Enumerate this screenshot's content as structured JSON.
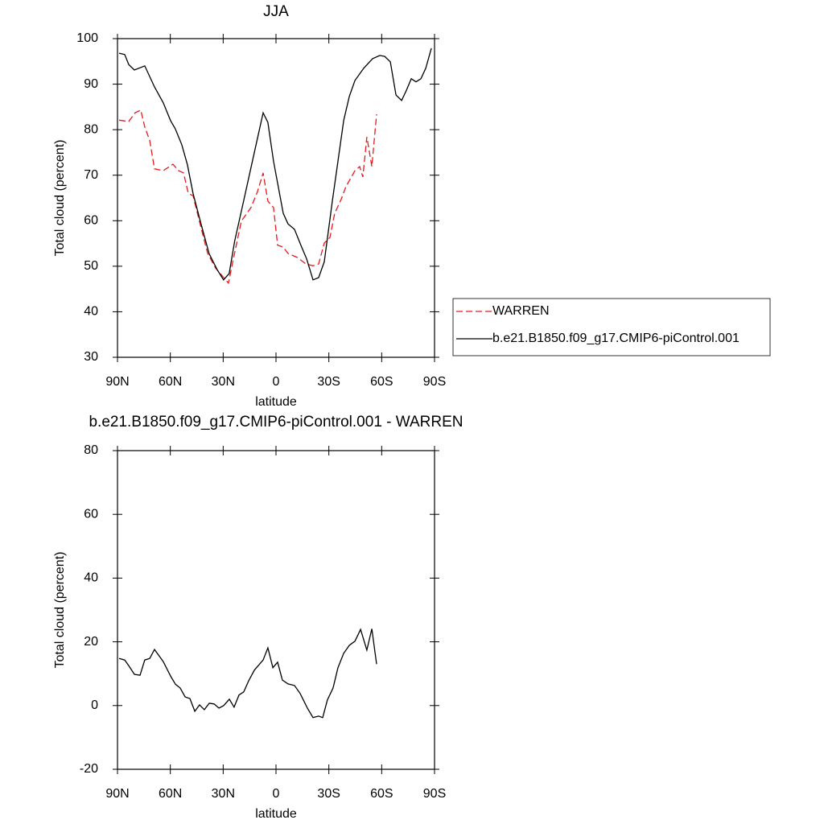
{
  "chart_data": [
    {
      "type": "line",
      "title": "JJA",
      "xlabel": "latitude",
      "ylabel": "Total cloud (percent)",
      "xlim": [
        90,
        -90
      ],
      "xticks": [
        {
          "value": 90,
          "label": "90N"
        },
        {
          "value": 60,
          "label": "60N"
        },
        {
          "value": 30,
          "label": "30N"
        },
        0,
        {
          "value": -30,
          "label": "30S"
        },
        {
          "value": -60,
          "label": "60S"
        },
        {
          "value": -90,
          "label": "90S"
        }
      ],
      "ylim": [
        30,
        100
      ],
      "yticks": [
        30,
        40,
        50,
        60,
        70,
        80,
        90,
        100
      ],
      "legend": "right",
      "series": [
        {
          "name": "WARREN",
          "color": "#e41a1c",
          "dashed": true,
          "x": [
            89.1,
            83.6,
            80,
            76.8,
            74.5,
            71.7,
            69,
            64,
            58.5,
            55.3,
            52.5,
            49.8,
            47.1,
            42.6,
            38.8,
            34.3,
            30.6,
            27,
            24.2,
            19.7,
            14.2,
            10.5,
            7.3,
            4.6,
            1.4,
            -0.9,
            -4.1,
            -6.8,
            -12.3,
            -16.9,
            -21,
            -24.2,
            -27.4,
            -30.6,
            -33.3,
            -37,
            -39.7,
            -44.8,
            -47.5,
            -49.3,
            -51.6,
            -54.4,
            -57.1
          ],
          "values": [
            82.1,
            81.8,
            83.7,
            84.3,
            80.6,
            77.6,
            71.4,
            71,
            72.4,
            71,
            70.5,
            66,
            65.5,
            58.5,
            52.8,
            49.6,
            47.9,
            46.3,
            51.6,
            59.9,
            62.9,
            66.4,
            70.5,
            64.3,
            62.9,
            54.6,
            54.2,
            52.8,
            51.9,
            50.5,
            50.1,
            50.5,
            55.1,
            56.3,
            61.6,
            64.7,
            67.5,
            71,
            71.9,
            69.6,
            78.4,
            71.9,
            83.4
          ]
        },
        {
          "name": "b.e21.B1850.f09_g17.CMIP6-piControl.001",
          "color": "#000000",
          "dashed": false,
          "x": [
            89.1,
            85.9,
            83.6,
            80.4,
            74.5,
            69,
            64,
            59.9,
            57.2,
            53.5,
            50.3,
            47.1,
            42.6,
            38,
            33.5,
            29.8,
            26.6,
            23.5,
            18.4,
            13.4,
            7.3,
            4.6,
            1.4,
            -4.1,
            -6.8,
            -10.5,
            -14.1,
            -17.4,
            -21,
            -24.2,
            -27.4,
            -32,
            -38.4,
            -41.6,
            -44.8,
            -49.8,
            -54.8,
            -59,
            -61.7,
            -64.9,
            -68.1,
            -71.3,
            -74.1,
            -76.8,
            -79.5,
            -82.3,
            -85,
            -88.2
          ],
          "values": [
            96.8,
            96.5,
            94.3,
            93.1,
            94,
            89.4,
            85.9,
            82,
            80.2,
            76.7,
            72.3,
            66,
            59.3,
            52.8,
            49.3,
            47,
            48.4,
            55.5,
            64.3,
            73.1,
            83.7,
            81.6,
            73.1,
            61.6,
            59.3,
            58.1,
            54.6,
            51.6,
            47,
            47.5,
            51,
            64.3,
            82,
            87.3,
            90.8,
            93.5,
            95.6,
            96.3,
            96.1,
            94.9,
            87.6,
            86.4,
            88.7,
            91.2,
            90.5,
            91.2,
            93.5,
            97.9
          ]
        }
      ]
    },
    {
      "type": "line",
      "title": "b.e21.B1850.f09_g17.CMIP6-piControl.001 - WARREN",
      "xlabel": "latitude",
      "ylabel": "Total cloud (percent)",
      "xlim": [
        90,
        -90
      ],
      "xticks": [
        {
          "value": 90,
          "label": "90N"
        },
        {
          "value": 60,
          "label": "60N"
        },
        {
          "value": 30,
          "label": "30N"
        },
        0,
        {
          "value": -30,
          "label": "30S"
        },
        {
          "value": -60,
          "label": "60S"
        },
        {
          "value": -90,
          "label": "90S"
        }
      ],
      "ylim": [
        -20,
        80
      ],
      "yticks": [
        -20,
        0,
        20,
        40,
        60,
        80
      ],
      "series": [
        {
          "color": "#000000",
          "dashed": false,
          "x": [
            89.1,
            85.9,
            83.6,
            80.4,
            77.2,
            74.5,
            71.7,
            69,
            64,
            59.9,
            57.1,
            54.4,
            51.6,
            48.9,
            46.1,
            43.4,
            40.7,
            37.9,
            35.2,
            32.4,
            29.7,
            26.5,
            23.8,
            21,
            18.3,
            15.5,
            12.3,
            7.3,
            4.6,
            1.8,
            -0.9,
            -3.6,
            -6.8,
            -10.5,
            -13.7,
            -17.8,
            -21,
            -24.2,
            -26.5,
            -29.2,
            -32.4,
            -35.2,
            -38.4,
            -41.6,
            -44.8,
            -48,
            -51.6,
            -54.4,
            -57.1
          ],
          "values": [
            14.8,
            14.3,
            12.5,
            9.8,
            9.5,
            14.3,
            14.8,
            17.6,
            13.8,
            9.3,
            6.7,
            5.5,
            2.7,
            2.2,
            -1.8,
            0.2,
            -1.3,
            0.7,
            0.5,
            -0.8,
            0,
            2,
            -0.5,
            3.3,
            4.3,
            7.8,
            11.1,
            14.3,
            18.1,
            11.9,
            13.6,
            8,
            6.8,
            6.3,
            3.8,
            -0.8,
            -3.8,
            -3.3,
            -3.8,
            1.8,
            5.5,
            11.9,
            16.4,
            18.9,
            20.2,
            23.9,
            17.4,
            24.1,
            13
          ]
        }
      ]
    }
  ]
}
